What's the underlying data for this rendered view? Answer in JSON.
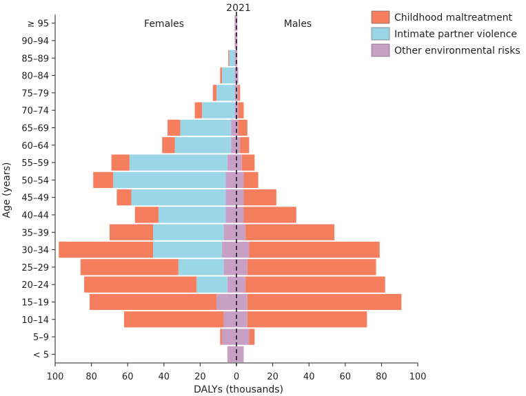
{
  "chart_data": {
    "type": "bar",
    "subtype": "population-pyramid-stacked",
    "title": "2021",
    "xlabel": "DALYs (thousands)",
    "ylabel": "Age (years)",
    "xlim": [
      -100,
      100
    ],
    "xticks": [
      -100,
      -80,
      -60,
      -40,
      -20,
      0,
      20,
      40,
      60,
      80,
      100
    ],
    "xtick_labels": [
      "100",
      "80",
      "60",
      "40",
      "20",
      "0",
      "20",
      "40",
      "60",
      "80",
      "100"
    ],
    "side_labels": {
      "left": "Females",
      "right": "Males"
    },
    "categories": [
      "< 5",
      "5–9",
      "10–14",
      "15–19",
      "20–24",
      "25–29",
      "30–34",
      "35–39",
      "40–44",
      "45–49",
      "50–54",
      "55–59",
      "60–64",
      "65–69",
      "70–74",
      "75–79",
      "80–84",
      "85–89",
      "90–94",
      "≥ 95"
    ],
    "legend": [
      "Childhood maltreatment",
      "Intimate partner violence",
      "Other environmental risks"
    ],
    "colors": {
      "Childhood maltreatment": "#f47e5e",
      "Intimate partner violence": "#9ad6e6",
      "Other environmental risks": "#c8a0c6"
    },
    "series": [
      {
        "sex": "Females",
        "name": "Other environmental risks",
        "values": [
          5,
          8,
          7,
          11,
          5,
          7,
          8,
          7,
          6,
          6,
          6,
          5,
          3,
          3,
          1,
          1,
          1,
          1,
          1,
          1
        ]
      },
      {
        "sex": "Females",
        "name": "Intimate partner violence",
        "values": [
          0,
          0,
          0,
          0,
          17,
          25,
          38,
          39,
          37,
          52,
          62,
          54,
          31,
          28,
          18,
          10,
          7,
          3,
          0,
          0
        ]
      },
      {
        "sex": "Females",
        "name": "Childhood maltreatment",
        "values": [
          0,
          1,
          55,
          70,
          62,
          54,
          52,
          24,
          13,
          8,
          11,
          10,
          7,
          7,
          4,
          2,
          1,
          0.5,
          0,
          0
        ]
      },
      {
        "sex": "Males",
        "name": "Other environmental risks",
        "values": [
          4,
          7,
          6,
          6,
          5,
          6,
          7,
          5,
          4,
          4,
          4,
          3,
          2,
          1,
          1,
          1,
          1,
          0.5,
          0.5,
          0.5
        ]
      },
      {
        "sex": "Males",
        "name": "Intimate partner violence",
        "values": [
          0,
          0,
          0,
          0,
          0,
          0,
          0,
          0,
          0,
          0,
          0,
          0,
          0,
          0,
          0,
          0,
          0,
          0,
          0,
          0
        ]
      },
      {
        "sex": "Males",
        "name": "Childhood maltreatment",
        "values": [
          0,
          3,
          66,
          85,
          77,
          71,
          72,
          49,
          29,
          18,
          8,
          7,
          5,
          5,
          3,
          1,
          0,
          0,
          0,
          0
        ]
      }
    ]
  }
}
